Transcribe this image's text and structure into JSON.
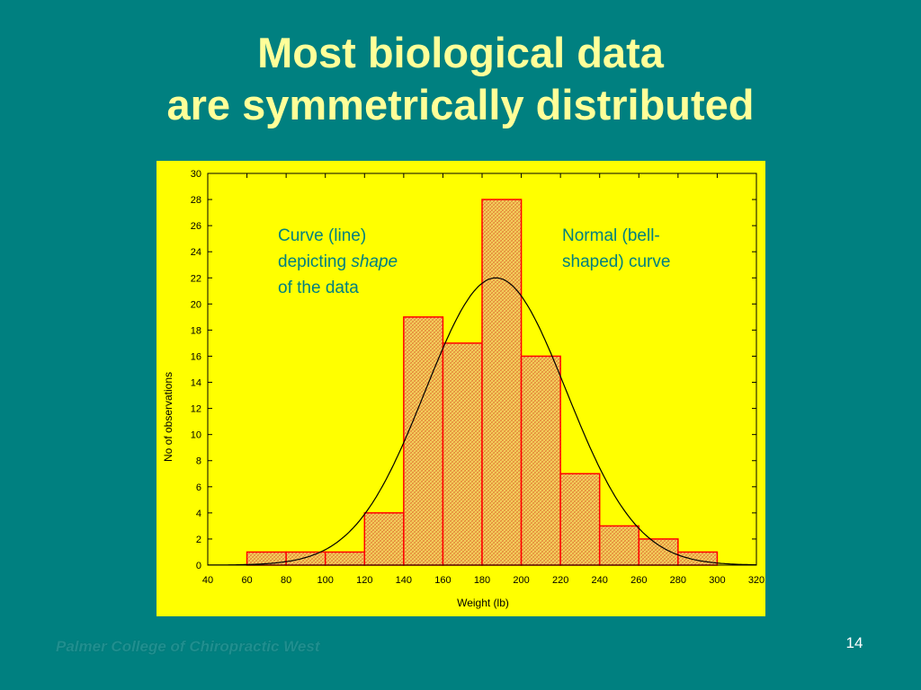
{
  "slide": {
    "title_line1": "Most biological data",
    "title_line2": "are symmetrically distributed",
    "footer": "Palmer College of Chiropractic West",
    "page_number": "14"
  },
  "colors": {
    "background": "#008080",
    "title": "#ffff99",
    "panel": "#ffff00",
    "bar_fill": "#e8b84a",
    "bar_stroke": "#ff0000",
    "annotation": "#008080",
    "curve": "#000000"
  },
  "chart_data": {
    "type": "bar",
    "xlabel": "Weight (lb)",
    "ylabel": "No of observations",
    "xlim": [
      40,
      320
    ],
    "ylim": [
      0,
      30
    ],
    "xticks": [
      40,
      60,
      80,
      100,
      120,
      140,
      160,
      180,
      200,
      220,
      240,
      260,
      280,
      300,
      320
    ],
    "yticks": [
      0,
      2,
      4,
      6,
      8,
      10,
      12,
      14,
      16,
      18,
      20,
      22,
      24,
      26,
      28,
      30
    ],
    "bin_width": 20,
    "bins": [
      {
        "start": 60,
        "end": 80,
        "count": 1
      },
      {
        "start": 80,
        "end": 100,
        "count": 1
      },
      {
        "start": 100,
        "end": 120,
        "count": 1
      },
      {
        "start": 120,
        "end": 140,
        "count": 4
      },
      {
        "start": 140,
        "end": 160,
        "count": 19
      },
      {
        "start": 160,
        "end": 180,
        "count": 17
      },
      {
        "start": 180,
        "end": 200,
        "count": 28
      },
      {
        "start": 200,
        "end": 220,
        "count": 16
      },
      {
        "start": 220,
        "end": 240,
        "count": 7
      },
      {
        "start": 240,
        "end": 260,
        "count": 3
      },
      {
        "start": 260,
        "end": 280,
        "count": 2
      },
      {
        "start": 280,
        "end": 300,
        "count": 1
      }
    ],
    "normal_curve": {
      "mean": 187,
      "sd": 36,
      "peak": 22
    },
    "annotations": [
      {
        "lines": [
          "Curve (line)",
          "depicting ",
          "of the data"
        ],
        "italic_word": "shape"
      },
      {
        "lines": [
          "Normal (bell-",
          "shaped) curve"
        ]
      }
    ],
    "grid": false
  }
}
